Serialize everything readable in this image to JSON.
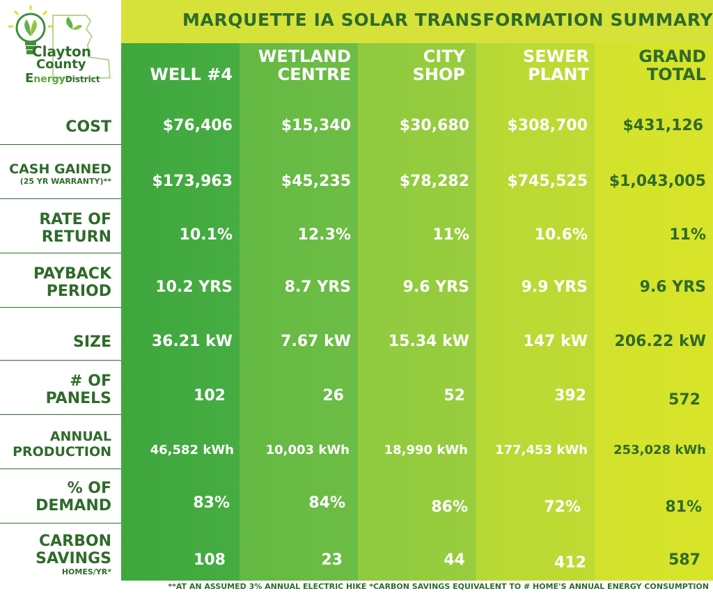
{
  "title": "MARQUETTE IA SOLAR TRANSFORMATION SUMMARY",
  "logo": {
    "line1": "Clayton",
    "line2": "County",
    "line3_a": "E",
    "line3_b": "nergy",
    "line3_c": "District",
    "icon": "lightbulb-sun-icon"
  },
  "columns": [
    {
      "line1": "WELL #4",
      "line2": ""
    },
    {
      "line1": "WETLAND",
      "line2": "CENTRE"
    },
    {
      "line1": "CITY",
      "line2": "SHOP"
    },
    {
      "line1": "SEWER",
      "line2": "PLANT"
    },
    {
      "line1": "GRAND",
      "line2": "TOTAL"
    }
  ],
  "rows": [
    {
      "label1": "COST",
      "label2": "",
      "note": "",
      "values": [
        "$76,406",
        "$15,340",
        "$30,680",
        "$308,700",
        "$431,126"
      ]
    },
    {
      "label1": "CASH GAINED",
      "label2": "",
      "note": "(25 YR WARRANTY)**",
      "values": [
        "$173,963",
        "$45,235",
        "$78,282",
        "$745,525",
        "$1,043,005"
      ]
    },
    {
      "label1": "RATE OF",
      "label2": "RETURN",
      "note": "",
      "values": [
        "10.1%",
        "12.3%",
        "11%",
        "10.6%",
        "11%"
      ]
    },
    {
      "label1": "PAYBACK",
      "label2": "PERIOD",
      "note": "",
      "values": [
        "10.2 YRS",
        "8.7 YRS",
        "9.6 YRS",
        "9.9 YRS",
        "9.6 YRS"
      ]
    },
    {
      "label1": "SIZE",
      "label2": "",
      "note": "",
      "values": [
        "36.21 kW",
        "7.67 kW",
        "15.34 kW",
        "147 kW",
        "206.22 kW"
      ]
    },
    {
      "label1": "# OF",
      "label2": "PANELS",
      "note": "",
      "values": [
        "102",
        "26",
        "52",
        "392",
        "572"
      ]
    },
    {
      "label1": "ANNUAL",
      "label2": "PRODUCTION",
      "note": "",
      "values": [
        "46,582 kWh",
        "10,003 kWh",
        "18,990 kWh",
        "177,453 kWh",
        "253,028 kWh"
      ]
    },
    {
      "label1": "% OF",
      "label2": "DEMAND",
      "note": "",
      "values": [
        "83%",
        "84%",
        "86%",
        "72%",
        "81%"
      ]
    },
    {
      "label1": "CARBON",
      "label2": "SAVINGS",
      "note": "HOMES/YR*",
      "values": [
        "108",
        "23",
        "44",
        "412",
        "587"
      ]
    }
  ],
  "footer": "**AT AN ASSUMED 3% ANNUAL ELECTRIC HIKE *CARBON SAVINGS EQUIVALENT TO # HOME'S ANNUAL ENERGY CONSUMPTION",
  "colors": {
    "dark_green": "#2e6b2a",
    "title_bar": "#d6e23a",
    "col1": "#42a940",
    "col2": "#69bb45",
    "col3": "#93cb3e",
    "col4": "#bbd934",
    "col5": "#d5e32b"
  }
}
